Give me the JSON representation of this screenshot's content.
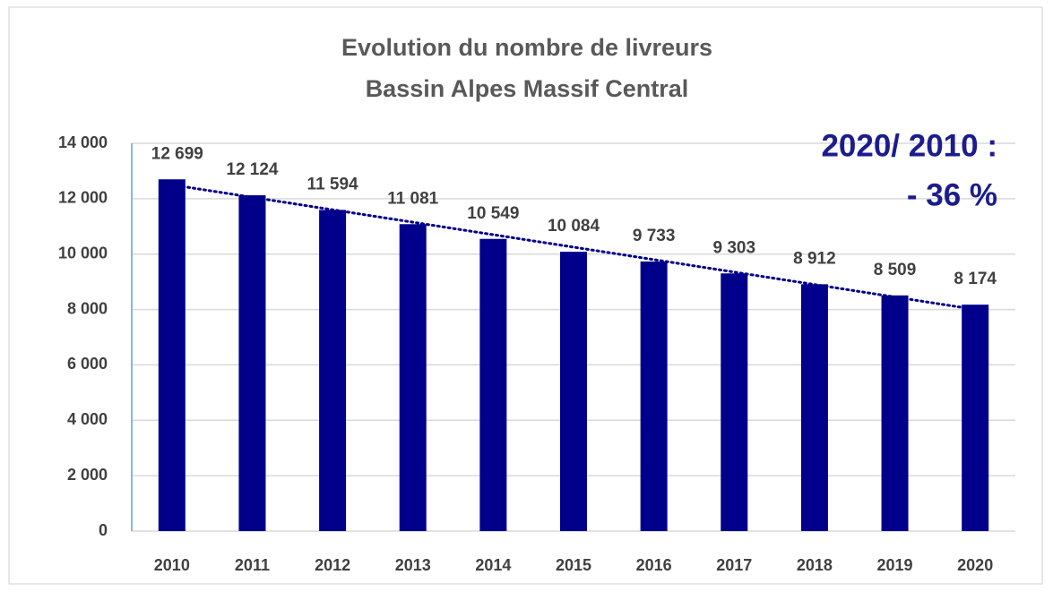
{
  "chart_data": {
    "type": "bar",
    "title": [
      "Evolution du nombre de livreurs",
      "Bassin Alpes Massif Central"
    ],
    "annotation": [
      "2020/ 2010 :",
      "- 36 %"
    ],
    "categories": [
      "2010",
      "2011",
      "2012",
      "2013",
      "2014",
      "2015",
      "2016",
      "2017",
      "2018",
      "2019",
      "2020"
    ],
    "values": [
      12699,
      12124,
      11594,
      11081,
      10549,
      10084,
      9733,
      9303,
      8912,
      8509,
      8174
    ],
    "value_labels": [
      "12 699",
      "12 124",
      "11 594",
      "11 081",
      "10 549",
      "10 084",
      "9 733",
      "9 303",
      "8 912",
      "8 509",
      "8 174"
    ],
    "color": "#00008b",
    "ylim": [
      0,
      14000
    ],
    "yticks": [
      0,
      {
        "value": 2000,
        "label": "2 000"
      },
      {
        "value": 4000,
        "label": "4 000"
      },
      {
        "value": 6000,
        "label": "6 000"
      },
      {
        "value": 8000,
        "label": "8 000"
      },
      {
        "value": 10000,
        "label": "10 000"
      },
      {
        "value": 12000,
        "label": "12 000"
      },
      {
        "value": 14000,
        "label": "14 000"
      }
    ],
    "grid": true,
    "trendline": true
  }
}
